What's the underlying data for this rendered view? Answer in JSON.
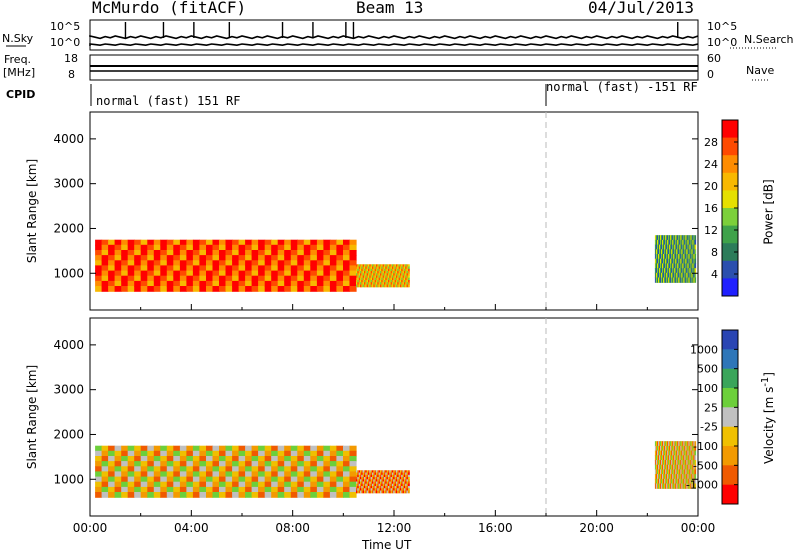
{
  "header": {
    "station": "McMurdo (fitACF)",
    "beam": "Beam 13",
    "date": "04/Jul/2013"
  },
  "summary": {
    "left_labels": {
      "nsky": "N.Sky",
      "freq": "Freq.",
      "freq_unit": "[MHz]",
      "cpid": "CPID"
    },
    "right_labels": {
      "nsearch": "N.Search",
      "nave": "Nave"
    },
    "noise_ticks_left": [
      "10^5",
      "10^0"
    ],
    "noise_ticks_right": [
      "10^5",
      "10^0"
    ],
    "freq_ticks": [
      "18",
      "8"
    ],
    "nave_ticks": [
      "60",
      "0"
    ],
    "cpid_segments": [
      {
        "label": "normal (fast) 151 RF",
        "start_hour": 0
      },
      {
        "label": "normal (fast) -151 RF",
        "start_hour": 18
      }
    ]
  },
  "chart_data": [
    {
      "type": "heatmap",
      "panel": "power",
      "ylabel": "Slant Range [km]",
      "colorbar_label": "Power [dB]",
      "colorbar_ticks": [
        "28",
        "24",
        "20",
        "16",
        "12",
        "8",
        "4"
      ],
      "colorbar_colors": [
        "#ff0000",
        "#ff4a00",
        "#ff8c00",
        "#f8b800",
        "#e5e000",
        "#7ccf3a",
        "#3fa24a",
        "#2c7c5a",
        "#2b4fae",
        "#2020ff"
      ],
      "yticks": [
        "4000",
        "3000",
        "2000",
        "1000"
      ],
      "ylim": [
        180,
        4600
      ],
      "xlim": [
        0,
        24
      ],
      "dashed_marker_hour": 18,
      "regions": [
        {
          "start_hour": 0.2,
          "end_hour": 10.5,
          "range_low_km": 600,
          "range_high_km": 1750,
          "value_db": 26
        },
        {
          "start_hour": 10.5,
          "end_hour": 12.6,
          "range_low_km": 700,
          "range_high_km": 1200,
          "value_db": 20
        },
        {
          "start_hour": 22.3,
          "end_hour": 23.9,
          "range_low_km": 800,
          "range_high_km": 1850,
          "value_db": 10
        }
      ]
    },
    {
      "type": "heatmap",
      "panel": "velocity",
      "ylabel": "Slant Range [km]",
      "xlabel": "Time UT",
      "colorbar_label": "Velocity [m s^-1]",
      "colorbar_ticks": [
        "1000",
        "500",
        "100",
        "25",
        "-25",
        "-100",
        "-500",
        "-1000"
      ],
      "colorbar_colors": [
        "#2a45b3",
        "#2e76b8",
        "#3aa55a",
        "#6ccf3a",
        "#c0c0c0",
        "#f0c000",
        "#f39a00",
        "#f05a00",
        "#ff0000"
      ],
      "yticks": [
        "4000",
        "3000",
        "2000",
        "1000"
      ],
      "xticks": [
        "00:00",
        "04:00",
        "08:00",
        "12:00",
        "16:00",
        "20:00",
        "00:00"
      ],
      "ylim": [
        180,
        4600
      ],
      "xlim": [
        0,
        24
      ],
      "dashed_marker_hour": 18,
      "regions": [
        {
          "start_hour": 0.2,
          "end_hour": 10.5,
          "range_low_km": 600,
          "range_high_km": 1750,
          "value_ms": -80
        },
        {
          "start_hour": 10.5,
          "end_hour": 12.6,
          "range_low_km": 700,
          "range_high_km": 1200,
          "value_ms": -150
        },
        {
          "start_hour": 22.3,
          "end_hour": 23.9,
          "range_low_km": 800,
          "range_high_km": 1850,
          "value_ms": -60
        }
      ]
    }
  ]
}
